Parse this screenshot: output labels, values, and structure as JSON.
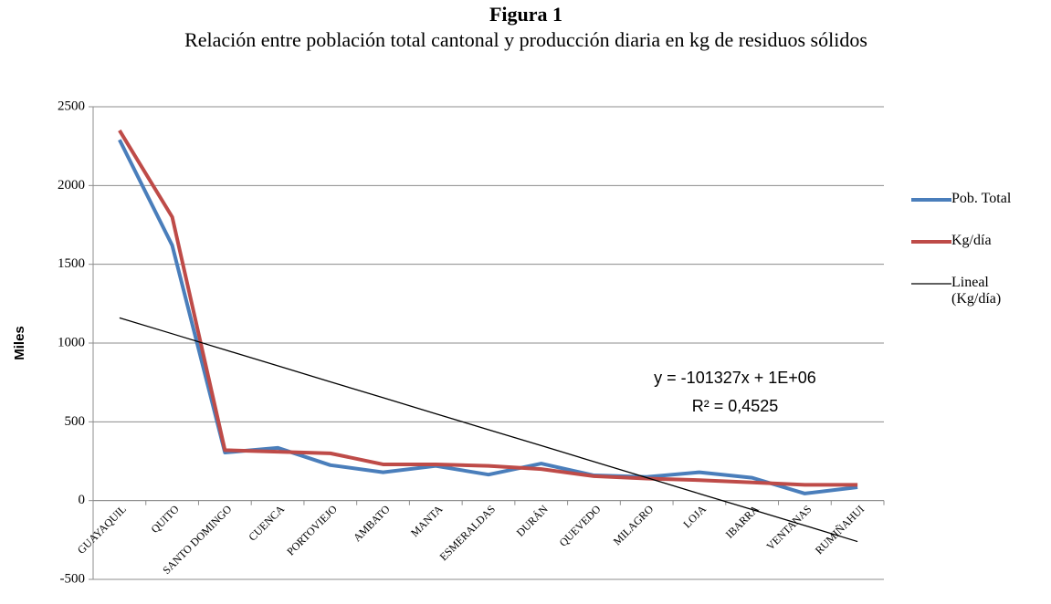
{
  "chart_data": {
    "type": "line",
    "title": "Figura 1",
    "subtitle": "Relación entre población total cantonal y producción diaria en kg de residuos sólidos",
    "y_label": "Miles",
    "categories": [
      "GUAYAQUIL",
      "QUITO",
      "SANTO DOMINGO",
      "CUENCA",
      "PORTOVIEJO",
      "AMBATO",
      "MANTA",
      "ESMERALDAS",
      "DURÁN",
      "QUEVEDO",
      "MILAGRO",
      "LOJA",
      "IBARRA",
      "VENTANAS",
      "RUMIÑAHUI"
    ],
    "series": [
      {
        "name": "Pob. Total",
        "color": "#4a7ebb",
        "width": 4,
        "values": [
          2290,
          1620,
          305,
          335,
          225,
          180,
          220,
          165,
          235,
          160,
          150,
          180,
          145,
          45,
          85
        ]
      },
      {
        "name": "Kg/día",
        "color": "#be4b48",
        "width": 4,
        "values": [
          2350,
          1800,
          320,
          310,
          300,
          230,
          230,
          220,
          200,
          155,
          140,
          130,
          115,
          100,
          100
        ]
      },
      {
        "name": "Lineal (Kg/día)",
        "color": "#000000",
        "width": 1.3,
        "values": [
          1160,
          1059,
          957,
          856,
          754,
          653,
          551,
          450,
          349,
          247,
          146,
          44,
          -57,
          -158,
          -260
        ]
      }
    ],
    "annotations": [
      "y = -101327x + 1E+06",
      "R² = 0,4525"
    ],
    "ylim": [
      -500,
      2500
    ],
    "yticks": [
      -500,
      0,
      500,
      1000,
      1500,
      2000,
      2500
    ],
    "grid": true
  }
}
